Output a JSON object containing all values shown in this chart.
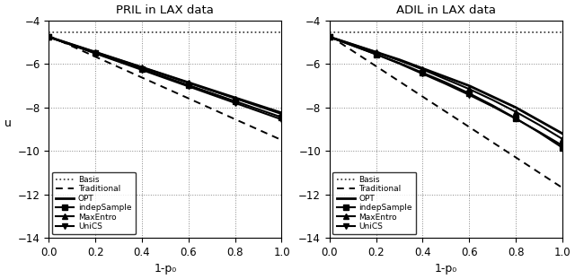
{
  "title_left": "PRIL in LAX data",
  "title_right": "ADIL in LAX data",
  "xlabel": "1-p₀",
  "ylabel": "u",
  "xlim": [
    0,
    1
  ],
  "ylim": [
    -14,
    -4
  ],
  "yticks": [
    -14,
    -12,
    -10,
    -8,
    -6,
    -4
  ],
  "xticks": [
    0,
    0.2,
    0.4,
    0.6,
    0.8,
    1.0
  ],
  "x": [
    0,
    0.1,
    0.2,
    0.3,
    0.4,
    0.5,
    0.6,
    0.7,
    0.8,
    0.9,
    1.0
  ],
  "pril": {
    "basis": [
      -4.55,
      -4.55,
      -4.55,
      -4.55,
      -4.55,
      -4.55,
      -4.55,
      -4.55,
      -4.55,
      -4.55,
      -4.55
    ],
    "traditional": [
      -4.7,
      -5.18,
      -5.66,
      -6.14,
      -6.62,
      -7.1,
      -7.58,
      -8.06,
      -8.54,
      -9.02,
      -9.5
    ],
    "opt": [
      -4.75,
      -5.1,
      -5.45,
      -5.8,
      -6.15,
      -6.5,
      -6.85,
      -7.2,
      -7.55,
      -7.9,
      -8.25
    ],
    "indepSample": [
      -4.75,
      -5.12,
      -5.49,
      -5.86,
      -6.23,
      -6.6,
      -6.97,
      -7.34,
      -7.71,
      -8.08,
      -8.45
    ],
    "maxEntro": [
      -4.75,
      -5.1,
      -5.45,
      -5.8,
      -6.15,
      -6.5,
      -6.86,
      -7.22,
      -7.58,
      -7.94,
      -8.3
    ],
    "uniCS": [
      -4.75,
      -5.13,
      -5.51,
      -5.89,
      -6.27,
      -6.65,
      -7.03,
      -7.41,
      -7.79,
      -8.17,
      -8.55
    ]
  },
  "adil": {
    "basis": [
      -4.55,
      -4.55,
      -4.55,
      -4.55,
      -4.55,
      -4.55,
      -4.55,
      -4.55,
      -4.55,
      -4.55,
      -4.55
    ],
    "traditional": [
      -4.7,
      -5.4,
      -6.1,
      -6.8,
      -7.5,
      -8.2,
      -8.9,
      -9.6,
      -10.3,
      -11.0,
      -11.7
    ],
    "opt": [
      -4.75,
      -5.1,
      -5.45,
      -5.8,
      -6.2,
      -6.6,
      -7.0,
      -7.5,
      -8.0,
      -8.6,
      -9.2
    ],
    "indepSample": [
      -4.75,
      -5.15,
      -5.55,
      -5.95,
      -6.4,
      -6.85,
      -7.35,
      -7.9,
      -8.5,
      -9.15,
      -9.85
    ],
    "maxEntro": [
      -4.75,
      -5.1,
      -5.45,
      -5.83,
      -6.25,
      -6.7,
      -7.15,
      -7.65,
      -8.2,
      -8.8,
      -9.45
    ],
    "uniCS": [
      -4.75,
      -5.15,
      -5.55,
      -5.98,
      -6.45,
      -6.92,
      -7.42,
      -7.95,
      -8.52,
      -9.12,
      -9.75
    ]
  },
  "marker_x": [
    0,
    0.2,
    0.4,
    0.6,
    0.8,
    1.0
  ],
  "basis_color": "#000000",
  "trad_color": "#000000",
  "line_color": "#000000",
  "grid_color": "#888888",
  "background_color": "#ffffff"
}
